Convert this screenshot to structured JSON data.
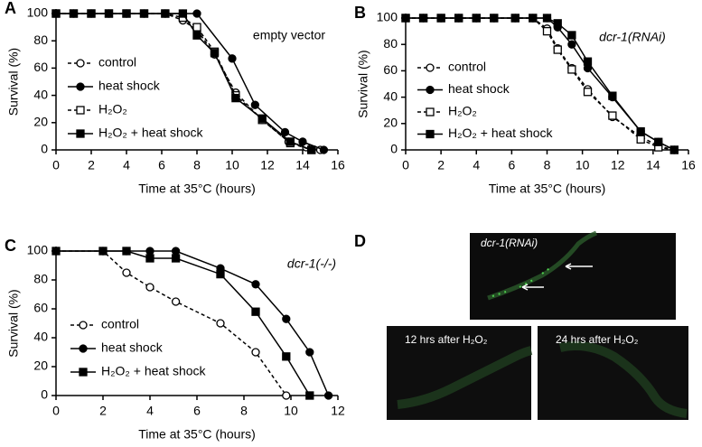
{
  "chart_data": [
    {
      "type": "line",
      "panel": "A",
      "annotation": "empty vector",
      "xlabel": "Time at 35°C (hours)",
      "ylabel": "Survival (%)",
      "xlim": [
        0,
        16
      ],
      "xticks": [
        0,
        2,
        4,
        6,
        8,
        10,
        12,
        14,
        16
      ],
      "ylim": [
        0,
        100
      ],
      "yticks": [
        0,
        20,
        40,
        60,
        80,
        100
      ],
      "series": [
        {
          "name": "control",
          "color": "#000000",
          "marker": "circle",
          "filled": false,
          "dashed": true,
          "x": [
            0,
            1,
            2,
            3,
            4,
            5,
            6.2,
            7.2,
            8,
            9,
            10.2,
            11.7,
            13.2,
            14.2,
            15
          ],
          "values": [
            100,
            100,
            100,
            100,
            100,
            100,
            100,
            95,
            88,
            70,
            42,
            22,
            6,
            2,
            0
          ]
        },
        {
          "name": "heat shock",
          "color": "#000000",
          "marker": "circle",
          "filled": true,
          "dashed": false,
          "x": [
            0,
            1,
            2,
            3,
            4,
            5,
            6.2,
            7.2,
            8,
            10,
            11.3,
            13,
            14,
            15.2
          ],
          "values": [
            100,
            100,
            100,
            100,
            100,
            100,
            100,
            100,
            100,
            67,
            33,
            13,
            6,
            0
          ]
        },
        {
          "name": "H₂O₂",
          "color": "#000000",
          "marker": "square",
          "filled": false,
          "dashed": true,
          "x": [
            0,
            1,
            2,
            3,
            4,
            5,
            6.2,
            7.2,
            8,
            9,
            10.2,
            11.7,
            13.3,
            14.5
          ],
          "values": [
            100,
            100,
            100,
            100,
            100,
            100,
            100,
            97,
            90,
            72,
            40,
            22,
            5,
            0
          ]
        },
        {
          "name": "H₂O₂ + heat shock",
          "color": "#000000",
          "marker": "square",
          "filled": true,
          "dashed": false,
          "x": [
            0,
            1,
            2,
            3,
            4,
            5,
            6.2,
            7.2,
            8,
            9,
            10.2,
            11.7,
            13.3,
            14.5
          ],
          "values": [
            100,
            100,
            100,
            100,
            100,
            100,
            100,
            100,
            84,
            71,
            38,
            23,
            6,
            0
          ]
        }
      ]
    },
    {
      "type": "line",
      "panel": "B",
      "annotation": "dcr-1(RNAi)",
      "xlabel": "Time at 35°C (hours)",
      "ylabel": "Survival (%)",
      "xlim": [
        0,
        16
      ],
      "xticks": [
        0,
        2,
        4,
        6,
        8,
        10,
        12,
        14,
        16
      ],
      "ylim": [
        0,
        100
      ],
      "yticks": [
        0,
        20,
        40,
        60,
        80,
        100
      ],
      "series": [
        {
          "name": "control",
          "color": "#000000",
          "marker": "circle",
          "filled": false,
          "dashed": true,
          "x": [
            0,
            1,
            2,
            3,
            4,
            5,
            6.2,
            7.2,
            8,
            8.6,
            9.4,
            10.3,
            11.7,
            13.3,
            14.3,
            15.2
          ],
          "values": [
            100,
            100,
            100,
            100,
            100,
            100,
            100,
            100,
            92,
            77,
            62,
            46,
            25,
            10,
            3,
            0
          ]
        },
        {
          "name": "heat shock",
          "color": "#000000",
          "marker": "circle",
          "filled": true,
          "dashed": false,
          "x": [
            0,
            1,
            2,
            3,
            4,
            5,
            6.2,
            7.2,
            8,
            8.6,
            9.4,
            10.3,
            11.7,
            13.3,
            14.3,
            15.2
          ],
          "values": [
            100,
            100,
            100,
            100,
            100,
            100,
            100,
            100,
            100,
            93,
            80,
            62,
            40,
            14,
            6,
            0
          ]
        },
        {
          "name": "H₂O₂",
          "color": "#000000",
          "marker": "square",
          "filled": false,
          "dashed": true,
          "x": [
            0,
            1,
            2,
            3,
            4,
            5,
            6.2,
            7.2,
            8,
            8.6,
            9.4,
            10.3,
            11.7,
            13.3,
            14.3,
            15.2
          ],
          "values": [
            100,
            100,
            100,
            100,
            100,
            100,
            100,
            100,
            90,
            76,
            61,
            44,
            26,
            8,
            2,
            0
          ]
        },
        {
          "name": "H₂O₂ + heat shock",
          "color": "#000000",
          "marker": "square",
          "filled": true,
          "dashed": false,
          "x": [
            0,
            1,
            2,
            3,
            4,
            5,
            6.2,
            7.2,
            8,
            8.6,
            9.4,
            10.3,
            11.7,
            13.3,
            14.3,
            15.2
          ],
          "values": [
            100,
            100,
            100,
            100,
            100,
            100,
            100,
            100,
            100,
            96,
            87,
            67,
            41,
            14,
            6,
            0
          ]
        }
      ]
    },
    {
      "type": "line",
      "panel": "C",
      "annotation": "dcr-1(-/-)",
      "xlabel": "Time at 35°C (hours)",
      "ylabel": "Survival (%)",
      "xlim": [
        0,
        12
      ],
      "xticks": [
        0,
        2,
        4,
        6,
        8,
        10,
        12
      ],
      "ylim": [
        0,
        100
      ],
      "yticks": [
        0,
        20,
        40,
        60,
        80,
        100
      ],
      "series": [
        {
          "name": "control",
          "color": "#000000",
          "marker": "circle",
          "filled": false,
          "dashed": true,
          "x": [
            0,
            2,
            3,
            4,
            5.1,
            7,
            8.5,
            9.8
          ],
          "values": [
            100,
            100,
            85,
            75,
            65,
            50,
            30,
            0
          ]
        },
        {
          "name": "heat shock",
          "color": "#000000",
          "marker": "circle",
          "filled": true,
          "dashed": false,
          "x": [
            0,
            2,
            3,
            4,
            5.1,
            7,
            8.5,
            9.8,
            10.8,
            11.6
          ],
          "values": [
            100,
            100,
            100,
            100,
            100,
            88,
            77,
            53,
            30,
            0
          ]
        },
        {
          "name": "H₂O₂ + heat shock",
          "color": "#000000",
          "marker": "square",
          "filled": true,
          "dashed": false,
          "x": [
            0,
            2,
            3,
            4,
            5.1,
            7,
            8.5,
            9.8,
            10.8
          ],
          "values": [
            100,
            100,
            100,
            95,
            95,
            84,
            58,
            27,
            0
          ]
        }
      ]
    }
  ],
  "panel_d": {
    "panel": "D",
    "images": [
      {
        "label": "dcr-1(RNAi)"
      },
      {
        "label": "12 hrs after H₂O₂"
      },
      {
        "label": "24 hrs after H₂O₂"
      }
    ]
  }
}
